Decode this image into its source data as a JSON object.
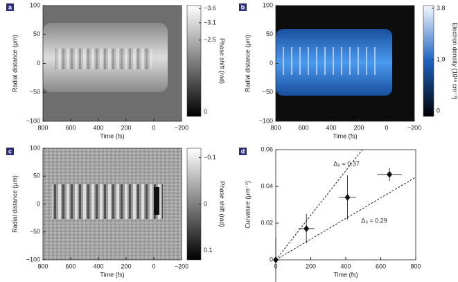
{
  "chart_data": [
    {
      "type": "heatmap",
      "panel": "a",
      "xlabel": "Time (fs)",
      "ylabel": "Radial distance (μm)",
      "xlim": [
        800,
        -200
      ],
      "ylim": [
        -100,
        100
      ],
      "xticks": [
        800,
        600,
        400,
        200,
        0,
        {
          "value": -200,
          "label": "−200"
        }
      ],
      "yticks": [
        {
          "value": -100,
          "label": "−100"
        },
        {
          "value": -50,
          "label": "−50"
        },
        0,
        50,
        100
      ],
      "colorbar": {
        "label": "Phase shift (rad)",
        "lim": [
          0.15,
          -3.7
        ],
        "ticks": [
          {
            "value": -3.6,
            "label": "−3.6"
          },
          {
            "value": -3.1,
            "label": "−3.1"
          },
          {
            "value": -2.5,
            "label": "−2.5"
          },
          0
        ]
      }
    },
    {
      "type": "heatmap",
      "panel": "b",
      "xlabel": "Time (fs)",
      "ylabel": "Radial distance (μm)",
      "xlim": [
        800,
        -200
      ],
      "ylim": [
        -100,
        100
      ],
      "xticks": [
        800,
        600,
        400,
        200,
        0,
        {
          "value": -200,
          "label": "−200"
        }
      ],
      "yticks": [
        {
          "value": -100,
          "label": "−100"
        },
        {
          "value": -50,
          "label": "−50"
        },
        0,
        50,
        100
      ],
      "colorbar": {
        "label": "Electron density (10¹⁸ cm⁻³)",
        "lim": [
          -0.2,
          3.9
        ],
        "ticks": [
          3.8,
          1.9,
          0
        ]
      }
    },
    {
      "type": "heatmap",
      "panel": "c",
      "xlabel": "Time (fs)",
      "ylabel": "Radial distance (μm)",
      "xlim": [
        800,
        -200
      ],
      "ylim": [
        -100,
        100
      ],
      "xticks": [
        800,
        600,
        400,
        200,
        0,
        {
          "value": -200,
          "label": "−200"
        }
      ],
      "yticks": [
        {
          "value": -100,
          "label": "−100"
        },
        {
          "value": -50,
          "label": "−50"
        },
        0,
        50,
        100
      ],
      "colorbar": {
        "label": "Phase shift (rad)",
        "lim": [
          0.12,
          -0.12
        ],
        "ticks": [
          {
            "value": -0.1,
            "label": "−0.1"
          },
          0,
          0.1
        ]
      }
    },
    {
      "type": "scatter",
      "panel": "d",
      "xlabel": "Time (fs)",
      "ylabel": "Curvature (μm⁻¹)",
      "xlim": [
        0,
        800
      ],
      "ylim": [
        0,
        0.06
      ],
      "xticks": [
        0,
        200,
        400,
        600,
        800
      ],
      "yticks": [
        0,
        0.02,
        0.04,
        0.06
      ],
      "series": [
        {
          "color": "#111111",
          "x": [
            0,
            175,
            410,
            650
          ],
          "values": [
            0,
            0.017,
            0.034,
            0.0465
          ],
          "xerr": [
            0,
            45,
            50,
            70
          ],
          "yerr": [
            0.012,
            0.008,
            0.012,
            0.0035
          ]
        }
      ],
      "fit_lines": [
        {
          "label": "Δ₀ = 0.37",
          "x": [
            0,
            495
          ],
          "y": [
            0,
            0.06
          ]
        },
        {
          "label": "Δ₀ = 0.29",
          "x": [
            0,
            800
          ],
          "y": [
            0,
            0.045
          ]
        }
      ]
    }
  ]
}
